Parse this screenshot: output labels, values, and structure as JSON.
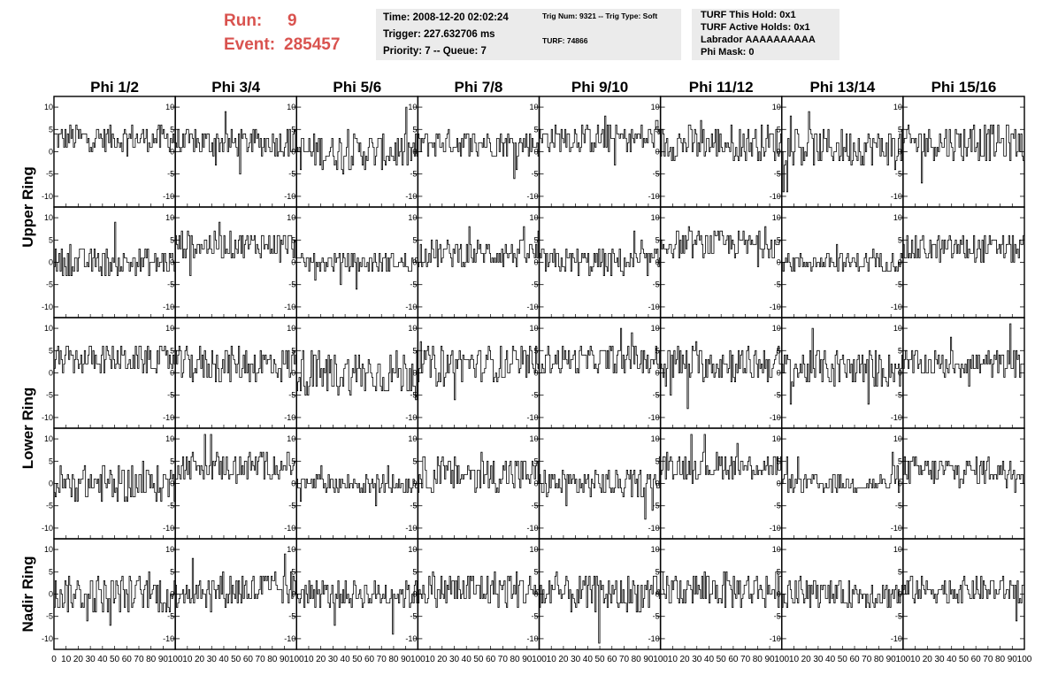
{
  "header": {
    "run_label": "Run:",
    "run_value": "9",
    "event_label": "Event:",
    "event_value": "285457"
  },
  "info": {
    "time": "Time: 2008-12-20 02:02:24",
    "trigger": "Trigger: 227.632706 ms",
    "priority": "Priority: 7 -- Queue: 7",
    "trig_num": "Trig Num: 9321 -- Trig Type: Soft",
    "turf": "TURF: 74866",
    "turf_this_hold": "TURF This Hold: 0x1",
    "turf_active_holds": "TURF Active Holds: 0x1",
    "labrador": "Labrador AAAAAAAAAA",
    "phi_mask": "Phi Mask: 0"
  },
  "chart_data": {
    "type": "line",
    "description_columns": [
      "Phi 1/2",
      "Phi 3/4",
      "Phi 5/6",
      "Phi 7/8",
      "Phi 9/10",
      "Phi 11/12",
      "Phi 13/14",
      "Phi 15/16"
    ],
    "ring_labels": [
      "Upper Ring",
      "Lower Ring",
      "Nadir Ring"
    ],
    "xlim": [
      0,
      100
    ],
    "ylim": [
      -12,
      12
    ],
    "x_ticks": [
      0,
      10,
      20,
      30,
      40,
      50,
      60,
      70,
      80,
      90,
      100
    ],
    "x_tick_labels": [
      "0",
      "10",
      "20",
      "30",
      "40",
      "50",
      "60",
      "70",
      "80",
      "90",
      "100"
    ],
    "y_ticks": [
      10,
      5,
      0,
      -5,
      -10
    ],
    "y_tick_labels": [
      "10",
      "5",
      "0",
      "-5",
      "-10"
    ],
    "panel_baselines": [
      [
        3,
        2,
        0,
        2,
        3,
        2,
        1,
        2
      ],
      [
        0,
        4,
        0,
        2,
        0,
        4,
        0,
        3
      ],
      [
        3,
        2,
        0,
        2,
        3,
        2,
        1,
        2
      ],
      [
        0,
        4,
        0,
        2,
        0,
        4,
        0,
        3
      ],
      [
        0,
        1,
        0,
        1,
        0,
        1,
        0,
        1
      ]
    ],
    "panel_spread": [
      [
        3,
        3,
        4,
        3,
        3,
        4,
        4,
        4
      ],
      [
        3,
        3,
        2,
        3,
        3,
        3,
        2,
        3
      ],
      [
        3,
        4,
        5,
        4,
        3,
        4,
        4,
        3
      ],
      [
        4,
        3,
        2,
        4,
        3,
        3,
        2,
        3
      ],
      [
        4,
        4,
        3,
        4,
        4,
        4,
        3,
        3
      ]
    ],
    "samples_per_panel": 100
  }
}
